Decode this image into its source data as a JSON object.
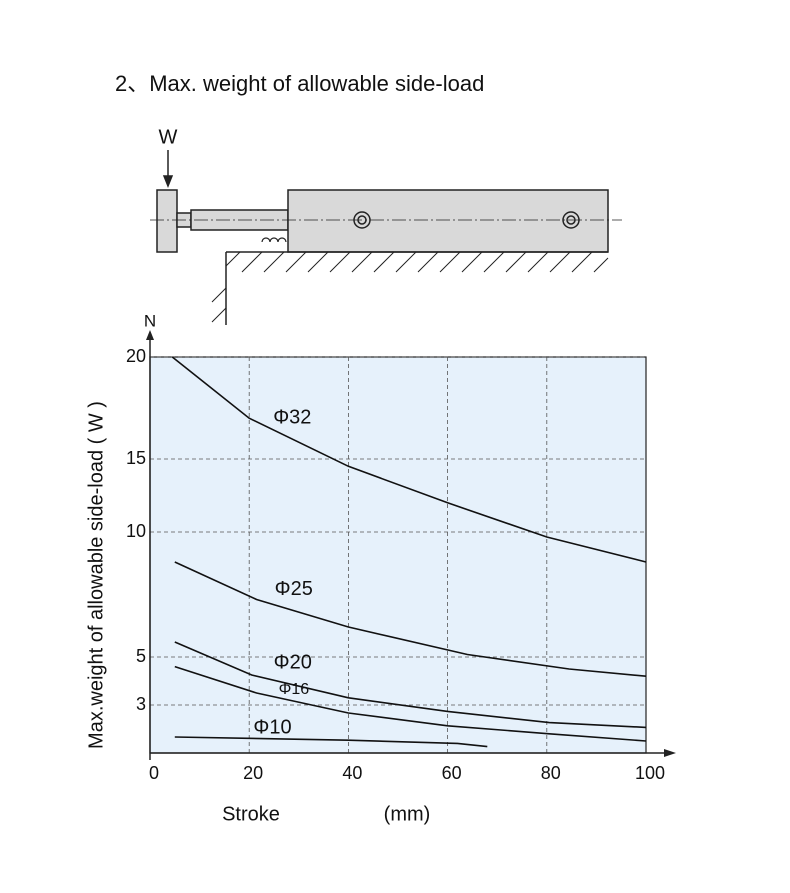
{
  "diagram": {
    "load_label": "W"
  },
  "chart_data": {
    "type": "line",
    "title": "2、Max. weight of allowable side-load",
    "y_label": "Max.weight of allowable side-load ( W )",
    "y_unit": "N",
    "x_label": "Stroke",
    "x_unit": "(mm)",
    "xlim": [
      0,
      100
    ],
    "xticks": [
      0,
      20,
      40,
      60,
      80,
      100
    ],
    "ylim": [
      0,
      20
    ],
    "yticks": [
      3,
      5,
      10,
      15,
      20
    ],
    "grid": true,
    "series": [
      {
        "name": "Φ32",
        "color": "#111111",
        "x": [
          4.5,
          20,
          40,
          60,
          80,
          100
        ],
        "values": [
          20,
          17,
          14.5,
          12,
          9.8,
          8.8
        ]
      },
      {
        "name": "Φ25",
        "color": "#111111",
        "x": [
          5,
          21.5,
          40,
          64,
          84.5,
          100
        ],
        "values": [
          8.8,
          7.3,
          6.2,
          5.1,
          4.5,
          4.2
        ]
      },
      {
        "name": "Φ20",
        "color": "#111111",
        "x": [
          5,
          20.5,
          40,
          60,
          80.5,
          100
        ],
        "values": [
          5.6,
          4.25,
          3.3,
          2.6,
          1.9,
          1.6
        ]
      },
      {
        "name": "Φ16",
        "color": "#111111",
        "x": [
          5,
          21.5,
          40,
          60,
          80.5,
          100
        ],
        "values": [
          4.6,
          3.5,
          2.5,
          1.7,
          1.2,
          0.75
        ]
      },
      {
        "name": "Φ10",
        "color": "#111111",
        "x": [
          5,
          40,
          62,
          68
        ],
        "values": [
          1.0,
          0.8,
          0.6,
          0.4
        ]
      }
    ]
  }
}
